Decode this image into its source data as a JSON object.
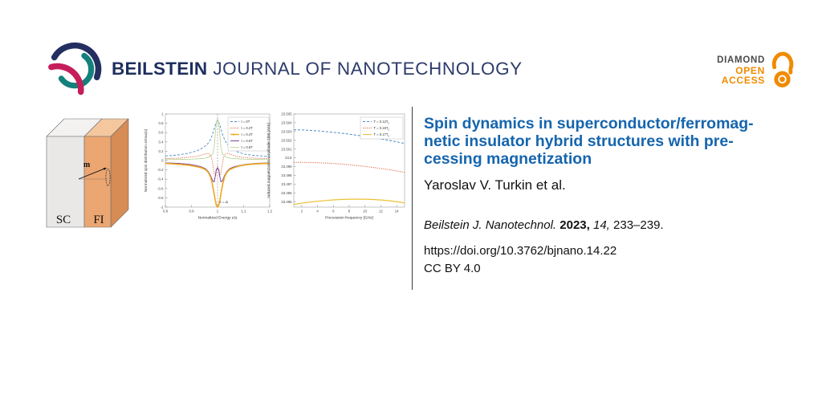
{
  "header": {
    "logo_bold": "BEILSTEIN",
    "logo_rest": "JOURNAL OF NANOTECHNOLOGY",
    "badge": {
      "diamond": "DIAMOND",
      "open": "OPEN",
      "access": "ACCESS"
    }
  },
  "colors": {
    "brand_navy": "#232f60",
    "brand_teal": "#14807c",
    "brand_crimson": "#c51e5a",
    "badge_orange": "#f18a00",
    "badge_gray": "#4a4a4a",
    "title_blue": "#1565ae",
    "divider_gray": "#3a3a3a",
    "box_sc_front": "#e9e8e6",
    "box_fi_front": "#eba671",
    "box_fi_side": "#d68c54",
    "box_sc_top": "#f3f2f0",
    "box_fi_top": "#f4c79e"
  },
  "diagram": {
    "sc_label": "SC",
    "fi_label": "FI",
    "m_label": "m"
  },
  "article": {
    "title_lines": [
      "Spin dynamics in superconductor/ferromag-",
      "netic insulator hybrid structures with pre-",
      "cessing magnetization"
    ],
    "authors": "Yaroslav V. Turkin et al.",
    "citation": {
      "journal": "Beilstein J. Nanotechnol.",
      "year": "2023,",
      "volume": "14,",
      "pages": "233–239."
    },
    "doi": "https://doi.org/10.3762/bjnano.14.22",
    "license": "CC BY 4.0"
  },
  "chart_data": [
    {
      "type": "line",
      "title": "",
      "xlabel": "Normalized Energy ε/Δ",
      "ylabel": "Normalized spin distribution s/max|s|",
      "xlim": [
        0.8,
        1.2
      ],
      "ylim": [
        -1,
        1
      ],
      "xticks": [
        "0.8",
        "0.9",
        "1",
        "1.1",
        "1.2"
      ],
      "yticks": [
        "1",
        "0.8",
        "0.6",
        "0.4",
        "0.2",
        "0",
        "-0.2",
        "-0.4",
        "-0.6",
        "-0.8",
        "-1"
      ],
      "grid": false,
      "legend_position": "upper right",
      "annotation": "ε = Δ",
      "vline_x": 1,
      "series": [
        {
          "name": "t = 0T",
          "color": "#4c87c6",
          "dash": "3,2",
          "width": 0.9,
          "x": [
            0.8,
            0.83,
            0.86,
            0.89,
            0.91,
            0.93,
            0.945,
            0.955,
            0.965,
            0.972,
            0.978,
            0.984,
            0.99,
            0.995,
            1.0,
            1.005,
            1.01,
            1.016,
            1.022,
            1.028,
            1.035,
            1.045,
            1.055,
            1.07,
            1.09,
            1.11,
            1.14,
            1.17,
            1.2
          ],
          "values": [
            0.1,
            0.11,
            0.13,
            0.16,
            0.19,
            0.23,
            0.28,
            0.32,
            0.38,
            0.44,
            0.52,
            0.62,
            0.74,
            0.82,
            0.86,
            0.82,
            0.74,
            0.62,
            0.52,
            0.44,
            0.37,
            0.3,
            0.25,
            0.2,
            0.16,
            0.13,
            0.11,
            0.1,
            0.08
          ]
        },
        {
          "name": "t = 0.2T",
          "color": "#d95f3b",
          "dash": "1.2,1.4",
          "width": 0.9,
          "x": [
            0.8,
            0.85,
            0.89,
            0.92,
            0.94,
            0.952,
            0.962,
            0.97,
            0.977,
            0.983,
            0.988,
            0.993,
            0.997,
            1.0,
            1.003,
            1.007,
            1.012,
            1.017,
            1.023,
            1.03,
            1.038,
            1.048,
            1.06,
            1.08,
            1.11,
            1.15,
            1.2
          ],
          "values": [
            0.04,
            0.05,
            0.07,
            0.09,
            0.12,
            0.14,
            0.155,
            0.14,
            0.06,
            -0.12,
            -0.3,
            -0.33,
            -0.18,
            -0.12,
            -0.18,
            -0.33,
            -0.3,
            -0.12,
            0.06,
            0.14,
            0.155,
            0.14,
            0.11,
            0.08,
            0.06,
            0.05,
            0.04
          ]
        },
        {
          "name": "t = 0.4T",
          "color": "#eda820",
          "dash": "",
          "width": 1.6,
          "x": [
            0.8,
            0.85,
            0.89,
            0.92,
            0.94,
            0.955,
            0.965,
            0.973,
            0.98,
            0.986,
            0.991,
            0.996,
            1.0,
            1.004,
            1.009,
            1.014,
            1.02,
            1.027,
            1.035,
            1.045,
            1.06,
            1.08,
            1.11,
            1.15,
            1.2
          ],
          "values": [
            -0.06,
            -0.08,
            -0.1,
            -0.13,
            -0.16,
            -0.2,
            -0.26,
            -0.35,
            -0.5,
            -0.68,
            -0.85,
            -0.97,
            -1.0,
            -0.97,
            -0.85,
            -0.68,
            -0.5,
            -0.35,
            -0.26,
            -0.2,
            -0.16,
            -0.12,
            -0.09,
            -0.07,
            -0.06
          ]
        },
        {
          "name": "t = 0.6T",
          "color": "#7e4a9c",
          "dash": "",
          "width": 1.0,
          "x": [
            0.8,
            0.85,
            0.89,
            0.92,
            0.94,
            0.955,
            0.965,
            0.974,
            0.981,
            0.987,
            0.991,
            0.995,
            1.0,
            1.005,
            1.009,
            1.013,
            1.019,
            1.026,
            1.035,
            1.045,
            1.06,
            1.08,
            1.11,
            1.15,
            1.2
          ],
          "values": [
            -0.05,
            -0.06,
            -0.08,
            -0.11,
            -0.14,
            -0.18,
            -0.24,
            -0.33,
            -0.43,
            -0.46,
            -0.35,
            -0.2,
            -0.16,
            -0.2,
            -0.35,
            -0.46,
            -0.43,
            -0.33,
            -0.24,
            -0.18,
            -0.14,
            -0.11,
            -0.08,
            -0.06,
            -0.05
          ]
        },
        {
          "name": "t = 0.8T",
          "color": "#b3d28f",
          "dash": "",
          "width": 0.8,
          "x": [
            0.8,
            0.86,
            0.9,
            0.93,
            0.95,
            0.965,
            0.975,
            0.982,
            0.987,
            0.991,
            0.995,
            1.0,
            1.005,
            1.009,
            1.013,
            1.018,
            1.025,
            1.035,
            1.05,
            1.07,
            1.1,
            1.14,
            1.2
          ],
          "values": [
            0.02,
            0.025,
            0.03,
            0.04,
            0.05,
            0.07,
            0.1,
            0.15,
            0.27,
            0.55,
            0.8,
            0.9,
            0.8,
            0.55,
            0.27,
            0.15,
            0.1,
            0.07,
            0.05,
            0.04,
            0.03,
            0.025,
            0.02
          ]
        }
      ]
    },
    {
      "type": "line",
      "title": "",
      "xlabel": "Precession frequency [GHz]",
      "ylabel": "Induced magnetization amplitude  2|M| [A/m]",
      "xlim": [
        1,
        15
      ],
      "ylim": [
        23.4944,
        23.505
      ],
      "xticks": [
        "2",
        "4",
        "6",
        "8",
        "10",
        "12",
        "14"
      ],
      "yticks": [
        "23.505",
        "23.504",
        "23.503",
        "23.502",
        "23.501",
        "23.5",
        "23.499",
        "23.498",
        "23.497",
        "23.496",
        "23.495"
      ],
      "grid": false,
      "legend_position": "upper right",
      "series": [
        {
          "name": "T = 0.12T",
          "sub": "c",
          "color": "#4c87c6",
          "dash": "3,2",
          "width": 1.0,
          "x": [
            1,
            2,
            3,
            4,
            5,
            6,
            7,
            8,
            9,
            10,
            11,
            12,
            13,
            14,
            15
          ],
          "values": [
            23.5032,
            23.50318,
            23.50314,
            23.50308,
            23.503,
            23.50291,
            23.50281,
            23.5027,
            23.50258,
            23.50245,
            23.50231,
            23.50216,
            23.502,
            23.50183,
            23.50165
          ]
        },
        {
          "name": "T = 0.15T",
          "sub": "c",
          "color": "#d95f3b",
          "dash": "1.2,1.4",
          "width": 1.0,
          "x": [
            1,
            2,
            3,
            4,
            5,
            6,
            7,
            8,
            9,
            10,
            11,
            12,
            13,
            14,
            15
          ],
          "values": [
            23.4995,
            23.4995,
            23.49948,
            23.49945,
            23.49941,
            23.49936,
            23.4993,
            23.49922,
            23.49913,
            23.49903,
            23.49892,
            23.4988,
            23.49867,
            23.49852,
            23.49836
          ]
        },
        {
          "name": "T = 0.17T",
          "sub": "c",
          "color": "#edc133",
          "dash": "",
          "width": 1.2,
          "x": [
            1,
            2,
            3,
            4,
            5,
            6,
            7,
            8,
            9,
            10,
            11,
            12,
            13,
            14,
            15
          ],
          "values": [
            23.4947,
            23.49485,
            23.49497,
            23.49507,
            23.49515,
            23.49522,
            23.49527,
            23.4953,
            23.49531,
            23.4953,
            23.49527,
            23.49521,
            23.49513,
            23.49502,
            23.49488
          ]
        }
      ]
    }
  ]
}
